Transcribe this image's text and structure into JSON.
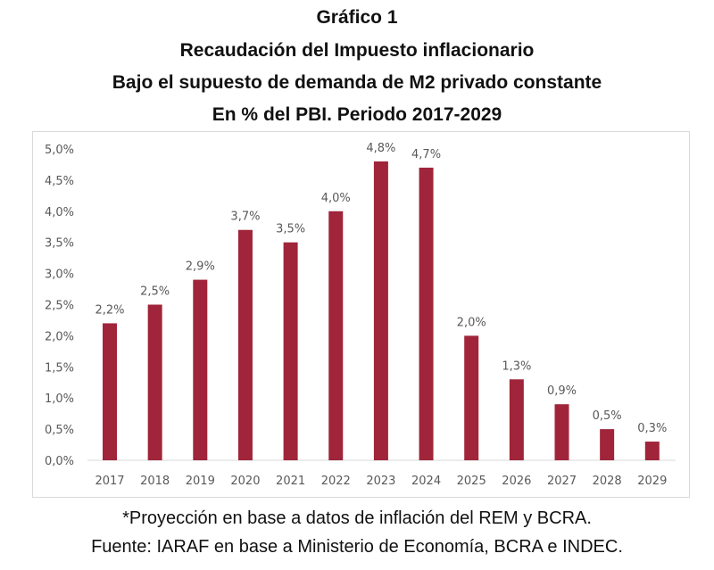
{
  "title_lines": [
    "Gráfico 1",
    "Recaudación del Impuesto inflacionario",
    "Bajo el supuesto de demanda de M2 privado constante",
    "En % del PBI. Periodo 2017-2029"
  ],
  "footer": {
    "note": "*Proyección en base a datos de inflación del REM y BCRA.",
    "source": "Fuente: IARAF en base a Ministerio de Economía, BCRA e INDEC."
  },
  "chart_data": {
    "type": "bar",
    "title": "Recaudación del Impuesto inflacionario",
    "categories": [
      "2017",
      "2018",
      "2019",
      "2020",
      "2021",
      "2022",
      "2023",
      "2024",
      "2025",
      "2026",
      "2027",
      "2028",
      "2029"
    ],
    "values": [
      2.2,
      2.5,
      2.9,
      3.7,
      3.5,
      4.0,
      4.8,
      4.7,
      2.0,
      1.3,
      0.9,
      0.5,
      0.3
    ],
    "data_labels": [
      "2,2%",
      "2,5%",
      "2,9%",
      "3,7%",
      "3,5%",
      "4,0%",
      "4,8%",
      "4,7%",
      "2,0%",
      "1,3%",
      "0,9%",
      "0,5%",
      "0,3%"
    ],
    "yticks": [
      "0,0%",
      "0,5%",
      "1,0%",
      "1,5%",
      "2,0%",
      "2,5%",
      "3,0%",
      "3,5%",
      "4,0%",
      "4,5%",
      "5,0%"
    ],
    "ylim": [
      0,
      5
    ],
    "grid": false,
    "bar_color": "#a0253a",
    "xlabel": "",
    "ylabel": ""
  }
}
